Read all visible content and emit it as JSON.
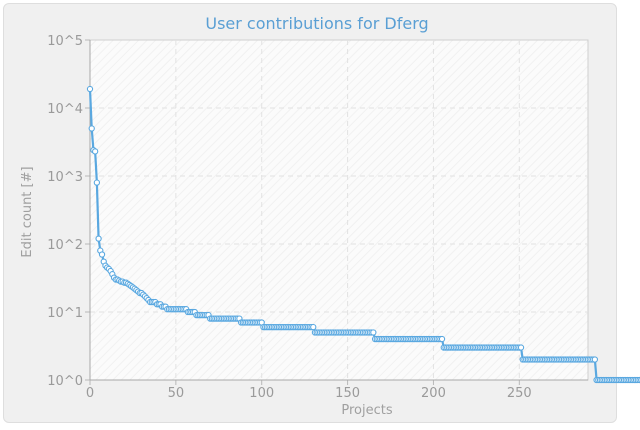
{
  "chart_data": {
    "type": "line",
    "title": "User contributions for Dferg",
    "xlabel": "Projects",
    "ylabel": "Edit count [#]",
    "y_scale": "log",
    "xlim": [
      0,
      290
    ],
    "ylim": [
      1,
      100000
    ],
    "x_ticks": [
      0,
      50,
      100,
      150,
      200,
      250
    ],
    "y_ticks": [
      1,
      10,
      100,
      1000,
      10000,
      100000
    ],
    "y_tick_labels": [
      "10^0",
      "10^1",
      "10^2",
      "10^3",
      "10^4",
      "10^5"
    ],
    "grid": true,
    "legend": "none",
    "series_color": "#5aa8e0",
    "series": [
      {
        "values": [
          19000,
          5000,
          2400,
          2300,
          800,
          120,
          80,
          70,
          55,
          48,
          45,
          43,
          40,
          36,
          32,
          30,
          30,
          29,
          28,
          28,
          27,
          27,
          26,
          25,
          24,
          23,
          22,
          21,
          20,
          19,
          19,
          18,
          17,
          16,
          15,
          14,
          14,
          14,
          14,
          13,
          13,
          13,
          12,
          12,
          12,
          11,
          11,
          11,
          11,
          11,
          11,
          11,
          11,
          11,
          11,
          11,
          11,
          10,
          10,
          10,
          10,
          10,
          9,
          9,
          9,
          9,
          9,
          9,
          9,
          9,
          8,
          8,
          8,
          8,
          8,
          8,
          8,
          8,
          8,
          8,
          8,
          8,
          8,
          8,
          8,
          8,
          8,
          8,
          7,
          7,
          7,
          7,
          7,
          7,
          7,
          7,
          7,
          7,
          7,
          7,
          7,
          6,
          6,
          6,
          6,
          6,
          6,
          6,
          6,
          6,
          6,
          6,
          6,
          6,
          6,
          6,
          6,
          6,
          6,
          6,
          6,
          6,
          6,
          6,
          6,
          6,
          6,
          6,
          6,
          6,
          6,
          5,
          5,
          5,
          5,
          5,
          5,
          5,
          5,
          5,
          5,
          5,
          5,
          5,
          5,
          5,
          5,
          5,
          5,
          5,
          5,
          5,
          5,
          5,
          5,
          5,
          5,
          5,
          5,
          5,
          5,
          5,
          5,
          5,
          5,
          5,
          4,
          4,
          4,
          4,
          4,
          4,
          4,
          4,
          4,
          4,
          4,
          4,
          4,
          4,
          4,
          4,
          4,
          4,
          4,
          4,
          4,
          4,
          4,
          4,
          4,
          4,
          4,
          4,
          4,
          4,
          4,
          4,
          4,
          4,
          4,
          4,
          4,
          4,
          4,
          4,
          3,
          3,
          3,
          3,
          3,
          3,
          3,
          3,
          3,
          3,
          3,
          3,
          3,
          3,
          3,
          3,
          3,
          3,
          3,
          3,
          3,
          3,
          3,
          3,
          3,
          3,
          3,
          3,
          3,
          3,
          3,
          3,
          3,
          3,
          3,
          3,
          3,
          3,
          3,
          3,
          3,
          3,
          3,
          3,
          3,
          3,
          2,
          2,
          2,
          2,
          2,
          2,
          2,
          2,
          2,
          2,
          2,
          2,
          2,
          2,
          2,
          2,
          2,
          2,
          2,
          2,
          2,
          2,
          2,
          2,
          2,
          2,
          2,
          2,
          2,
          2,
          2,
          2,
          2,
          2,
          2,
          2,
          2,
          2,
          2,
          2,
          2,
          2,
          2,
          1,
          1,
          1,
          1,
          1,
          1,
          1,
          1,
          1,
          1,
          1,
          1,
          1,
          1,
          1,
          1,
          1,
          1,
          1,
          1,
          1,
          1,
          1,
          1,
          1,
          1,
          1,
          1,
          1,
          1,
          1,
          1,
          1,
          1,
          1,
          1,
          1,
          1,
          1,
          1,
          1,
          1,
          1,
          1,
          1,
          1,
          1,
          1,
          1,
          1,
          1,
          1,
          1,
          1,
          1,
          1,
          1
        ]
      }
    ]
  }
}
